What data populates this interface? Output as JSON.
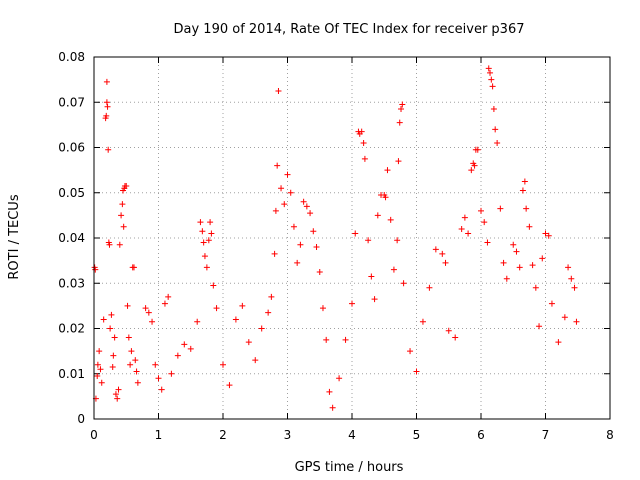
{
  "chart_data": {
    "type": "scatter",
    "title": "Day 190 of 2014, Rate Of TEC Index for receiver p367",
    "xlabel": "GPS time / hours",
    "ylabel": "ROTI / TECUs",
    "xlim": [
      0,
      8
    ],
    "ylim": [
      0,
      0.08
    ],
    "xticks": [
      0,
      1,
      2,
      3,
      4,
      5,
      6,
      7,
      8
    ],
    "xtick_labels": [
      "0",
      "1",
      "2",
      "3",
      "4",
      "5",
      "6",
      "7",
      "8"
    ],
    "yticks": [
      0,
      0.01,
      0.02,
      0.03,
      0.04,
      0.05,
      0.06,
      0.07,
      0.08
    ],
    "ytick_labels": [
      "0",
      "0.01",
      "0.02",
      "0.03",
      "0.04",
      "0.05",
      "0.06",
      "0.07",
      "0.08"
    ],
    "grid": true,
    "marker": "+",
    "color": "#ff0000",
    "series": [
      {
        "name": "p367 ROTI",
        "points": [
          [
            0.01,
            0.0335
          ],
          [
            0.02,
            0.033
          ],
          [
            0.03,
            0.0045
          ],
          [
            0.05,
            0.0095
          ],
          [
            0.06,
            0.012
          ],
          [
            0.08,
            0.015
          ],
          [
            0.1,
            0.011
          ],
          [
            0.12,
            0.008
          ],
          [
            0.15,
            0.022
          ],
          [
            0.18,
            0.0665
          ],
          [
            0.19,
            0.067
          ],
          [
            0.2,
            0.0745
          ],
          [
            0.2,
            0.07
          ],
          [
            0.21,
            0.069
          ],
          [
            0.22,
            0.0595
          ],
          [
            0.23,
            0.039
          ],
          [
            0.24,
            0.0385
          ],
          [
            0.25,
            0.02
          ],
          [
            0.27,
            0.023
          ],
          [
            0.29,
            0.0115
          ],
          [
            0.3,
            0.014
          ],
          [
            0.32,
            0.018
          ],
          [
            0.34,
            0.0055
          ],
          [
            0.36,
            0.0045
          ],
          [
            0.38,
            0.0065
          ],
          [
            0.4,
            0.0385
          ],
          [
            0.42,
            0.045
          ],
          [
            0.44,
            0.0475
          ],
          [
            0.45,
            0.0505
          ],
          [
            0.46,
            0.0425
          ],
          [
            0.47,
            0.051
          ],
          [
            0.48,
            0.0515
          ],
          [
            0.5,
            0.0515
          ],
          [
            0.52,
            0.025
          ],
          [
            0.54,
            0.018
          ],
          [
            0.56,
            0.012
          ],
          [
            0.58,
            0.015
          ],
          [
            0.6,
            0.0335
          ],
          [
            0.62,
            0.0335
          ],
          [
            0.64,
            0.013
          ],
          [
            0.66,
            0.0105
          ],
          [
            0.68,
            0.008
          ],
          [
            0.8,
            0.0245
          ],
          [
            0.85,
            0.0235
          ],
          [
            0.9,
            0.0215
          ],
          [
            0.95,
            0.012
          ],
          [
            1.0,
            0.009
          ],
          [
            1.05,
            0.0065
          ],
          [
            1.1,
            0.0255
          ],
          [
            1.15,
            0.027
          ],
          [
            1.2,
            0.01
          ],
          [
            1.3,
            0.014
          ],
          [
            1.4,
            0.0165
          ],
          [
            1.5,
            0.0155
          ],
          [
            1.6,
            0.0215
          ],
          [
            1.65,
            0.0435
          ],
          [
            1.68,
            0.0415
          ],
          [
            1.7,
            0.039
          ],
          [
            1.72,
            0.036
          ],
          [
            1.75,
            0.0335
          ],
          [
            1.78,
            0.0395
          ],
          [
            1.8,
            0.0435
          ],
          [
            1.82,
            0.041
          ],
          [
            1.85,
            0.0295
          ],
          [
            1.9,
            0.0245
          ],
          [
            2.0,
            0.012
          ],
          [
            2.1,
            0.0075
          ],
          [
            2.2,
            0.022
          ],
          [
            2.3,
            0.025
          ],
          [
            2.4,
            0.017
          ],
          [
            2.5,
            0.013
          ],
          [
            2.6,
            0.02
          ],
          [
            2.7,
            0.0235
          ],
          [
            2.75,
            0.027
          ],
          [
            2.8,
            0.0365
          ],
          [
            2.82,
            0.046
          ],
          [
            2.84,
            0.056
          ],
          [
            2.86,
            0.0725
          ],
          [
            2.9,
            0.051
          ],
          [
            2.95,
            0.0475
          ],
          [
            3.0,
            0.054
          ],
          [
            3.05,
            0.05
          ],
          [
            3.1,
            0.0425
          ],
          [
            3.15,
            0.0345
          ],
          [
            3.2,
            0.0385
          ],
          [
            3.25,
            0.048
          ],
          [
            3.3,
            0.047
          ],
          [
            3.35,
            0.0455
          ],
          [
            3.4,
            0.0415
          ],
          [
            3.45,
            0.038
          ],
          [
            3.5,
            0.0325
          ],
          [
            3.55,
            0.0245
          ],
          [
            3.6,
            0.0175
          ],
          [
            3.65,
            0.006
          ],
          [
            3.7,
            0.0025
          ],
          [
            3.8,
            0.009
          ],
          [
            3.9,
            0.0175
          ],
          [
            4.0,
            0.0255
          ],
          [
            4.05,
            0.041
          ],
          [
            4.1,
            0.0635
          ],
          [
            4.12,
            0.063
          ],
          [
            4.15,
            0.0635
          ],
          [
            4.18,
            0.061
          ],
          [
            4.2,
            0.0575
          ],
          [
            4.25,
            0.0395
          ],
          [
            4.3,
            0.0315
          ],
          [
            4.35,
            0.0265
          ],
          [
            4.4,
            0.045
          ],
          [
            4.45,
            0.0495
          ],
          [
            4.5,
            0.0495
          ],
          [
            4.52,
            0.049
          ],
          [
            4.55,
            0.055
          ],
          [
            4.6,
            0.044
          ],
          [
            4.65,
            0.033
          ],
          [
            4.7,
            0.0395
          ],
          [
            4.72,
            0.057
          ],
          [
            4.74,
            0.0655
          ],
          [
            4.76,
            0.0685
          ],
          [
            4.78,
            0.0695
          ],
          [
            4.8,
            0.03
          ],
          [
            4.9,
            0.015
          ],
          [
            5.0,
            0.0105
          ],
          [
            5.1,
            0.0215
          ],
          [
            5.2,
            0.029
          ],
          [
            5.3,
            0.0375
          ],
          [
            5.4,
            0.0365
          ],
          [
            5.45,
            0.0345
          ],
          [
            5.5,
            0.0195
          ],
          [
            5.6,
            0.018
          ],
          [
            5.7,
            0.042
          ],
          [
            5.75,
            0.0445
          ],
          [
            5.8,
            0.041
          ],
          [
            5.85,
            0.055
          ],
          [
            5.88,
            0.0565
          ],
          [
            5.9,
            0.056
          ],
          [
            5.92,
            0.0595
          ],
          [
            5.95,
            0.0595
          ],
          [
            6.0,
            0.046
          ],
          [
            6.05,
            0.0435
          ],
          [
            6.1,
            0.039
          ],
          [
            6.12,
            0.0775
          ],
          [
            6.14,
            0.0765
          ],
          [
            6.16,
            0.075
          ],
          [
            6.18,
            0.0735
          ],
          [
            6.2,
            0.0685
          ],
          [
            6.22,
            0.064
          ],
          [
            6.25,
            0.061
          ],
          [
            6.3,
            0.0465
          ],
          [
            6.35,
            0.0345
          ],
          [
            6.4,
            0.031
          ],
          [
            6.5,
            0.0385
          ],
          [
            6.55,
            0.037
          ],
          [
            6.6,
            0.0335
          ],
          [
            6.65,
            0.0505
          ],
          [
            6.68,
            0.0525
          ],
          [
            6.7,
            0.0465
          ],
          [
            6.75,
            0.0425
          ],
          [
            6.8,
            0.034
          ],
          [
            6.85,
            0.029
          ],
          [
            6.9,
            0.0205
          ],
          [
            6.95,
            0.0355
          ],
          [
            7.0,
            0.041
          ],
          [
            7.05,
            0.0405
          ],
          [
            7.1,
            0.0255
          ],
          [
            7.2,
            0.017
          ],
          [
            7.3,
            0.0225
          ],
          [
            7.35,
            0.0335
          ],
          [
            7.4,
            0.031
          ],
          [
            7.45,
            0.029
          ],
          [
            7.48,
            0.0215
          ]
        ]
      }
    ]
  }
}
